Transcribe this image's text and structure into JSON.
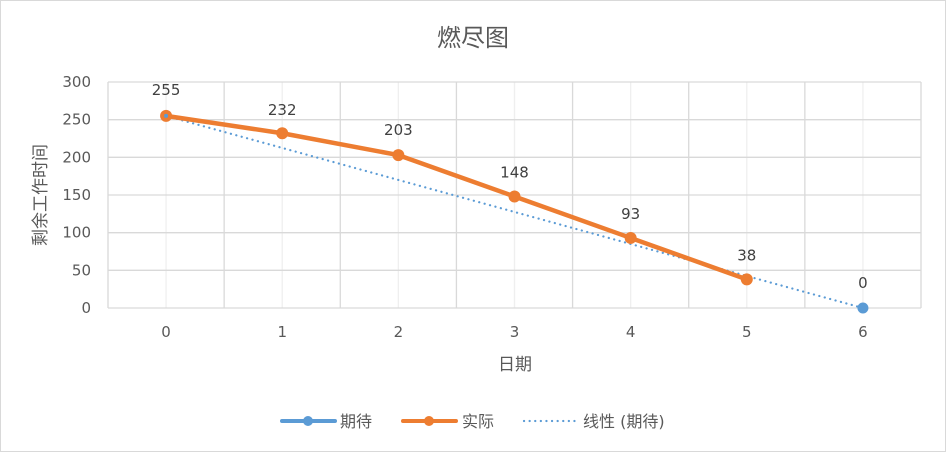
{
  "chart_data": {
    "type": "line",
    "title": "燃尽图",
    "xlabel": "日期",
    "ylabel": "剩余工作时间",
    "categories": [
      "0",
      "1",
      "2",
      "3",
      "4",
      "5",
      "6"
    ],
    "ylim": [
      0,
      300
    ],
    "yticks": [
      "0",
      "50",
      "100",
      "150",
      "200",
      "250",
      "300"
    ],
    "grid": true,
    "legend_position": "bottom",
    "series": [
      {
        "name": "期待",
        "color": "#5b9bd5",
        "values": [
          255,
          null,
          null,
          null,
          null,
          null,
          0
        ],
        "markers": true,
        "line_visible": false
      },
      {
        "name": "实际",
        "color": "#ed7d31",
        "values": [
          255,
          232,
          203,
          148,
          93,
          38,
          null
        ],
        "markers": true
      },
      {
        "name": "线性 (期待)",
        "color": "#5b9bd5",
        "style": "dotted",
        "values": [
          255,
          212.5,
          170,
          127.5,
          85,
          42.5,
          0
        ],
        "trendline_of": "期待"
      }
    ],
    "data_labels": [
      {
        "x": "0",
        "text": "255"
      },
      {
        "x": "1",
        "text": "232"
      },
      {
        "x": "2",
        "text": "203"
      },
      {
        "x": "3",
        "text": "148"
      },
      {
        "x": "4",
        "text": "93"
      },
      {
        "x": "5",
        "text": "38"
      },
      {
        "x": "6",
        "text": "0"
      }
    ]
  },
  "legend": {
    "items": [
      {
        "label": "期待"
      },
      {
        "label": "实际"
      },
      {
        "label": "线性 (期待)"
      }
    ]
  }
}
